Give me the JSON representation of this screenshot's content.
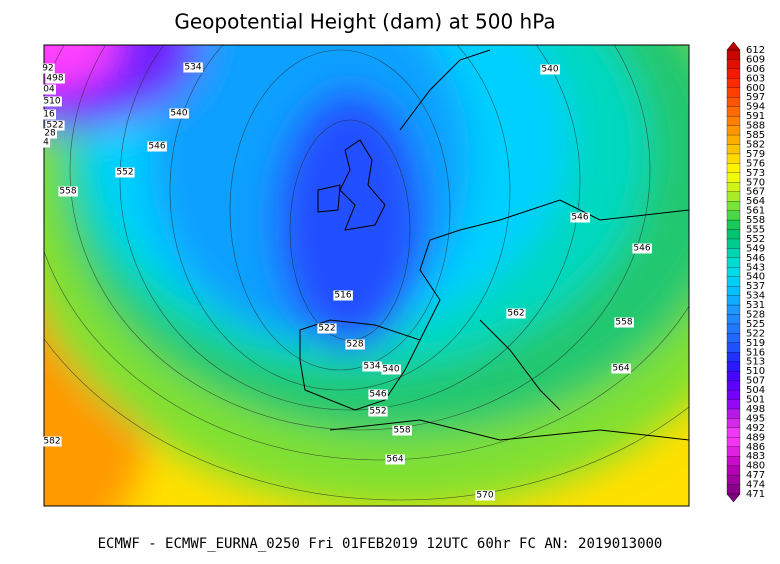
{
  "title": "Geopotential Height (dam) at 500 hPa",
  "footer": "ECMWF - ECMWF_EURNA_0250 Fri 01FEB2019 12UTC 60hr FC AN: 2019013000",
  "colorbar": {
    "labels": [
      612,
      609,
      606,
      603,
      600,
      597,
      594,
      591,
      588,
      585,
      582,
      579,
      576,
      573,
      570,
      567,
      564,
      561,
      558,
      555,
      552,
      549,
      546,
      543,
      540,
      537,
      534,
      531,
      528,
      525,
      522,
      519,
      516,
      513,
      510,
      507,
      504,
      501,
      498,
      495,
      492,
      489,
      486,
      483,
      480,
      477,
      474,
      471
    ]
  },
  "contour_labels": [
    "534",
    "540",
    "540",
    "546",
    "552",
    "558",
    "546",
    "546",
    "516",
    "562",
    "558",
    "522",
    "528",
    "534",
    "540",
    "564",
    "546",
    "552",
    "558",
    "564",
    "570",
    "582",
    "92",
    "498",
    "04",
    "510",
    "16",
    "522",
    "28",
    "4"
  ]
}
